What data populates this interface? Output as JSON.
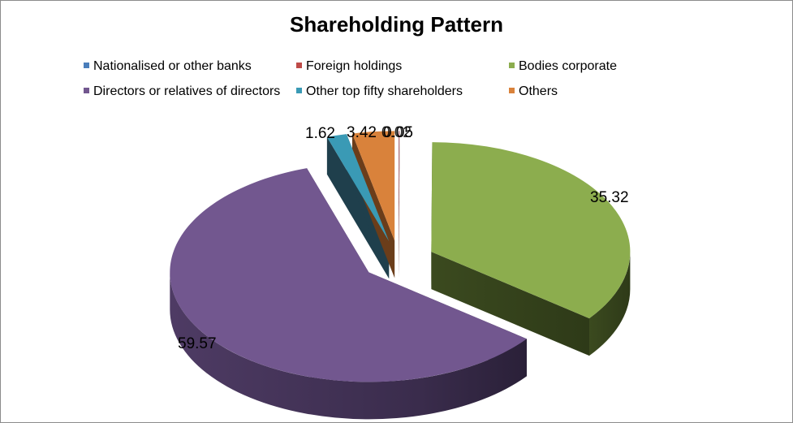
{
  "chart_data": {
    "type": "pie",
    "title": "Shareholding Pattern",
    "legend_position": "top",
    "categories": [
      "Nationalised or other banks",
      "Foreign holdings",
      "Bodies corporate",
      "Directors or relatives of directors",
      "Other top fifty shareholders",
      "Others"
    ],
    "values": [
      0.02,
      0.05,
      35.32,
      59.57,
      1.62,
      3.42
    ],
    "data_labels": [
      "0.02",
      "0.05",
      "35.32",
      "59.57",
      "1.62",
      "3.42"
    ],
    "colors": [
      "#4a7ebb",
      "#be4b48",
      "#8cad4e",
      "#72578f",
      "#3a9ab5",
      "#d9823b"
    ]
  }
}
